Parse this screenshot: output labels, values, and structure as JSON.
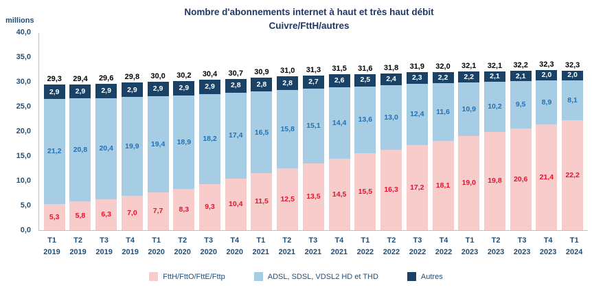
{
  "chart_data": {
    "type": "bar",
    "variant": "stacked",
    "title": "Nombre d'abonnements internet à haut et très haut débit",
    "subtitle": "Cuivre/FttH/autres",
    "unit_label": "millions",
    "ylim": [
      0,
      40
    ],
    "grid": false,
    "legend_position": "bottom",
    "yticks": [
      {
        "v": 40,
        "label": "40,0"
      },
      {
        "v": 35,
        "label": "35,0"
      },
      {
        "v": 30,
        "label": "30,0"
      },
      {
        "v": 25,
        "label": "25,0"
      },
      {
        "v": 20,
        "label": "20,0"
      },
      {
        "v": 15,
        "label": "15,0"
      },
      {
        "v": 10,
        "label": "10,0"
      },
      {
        "v": 5,
        "label": "5,0"
      },
      {
        "v": 0,
        "label": "0,0"
      }
    ],
    "categories": [
      {
        "t": "T1",
        "year": "2019"
      },
      {
        "t": "T2",
        "year": "2019"
      },
      {
        "t": "T3",
        "year": "2019"
      },
      {
        "t": "T4",
        "year": "2019"
      },
      {
        "t": "T1",
        "year": "2020"
      },
      {
        "t": "T2",
        "year": "2020"
      },
      {
        "t": "T3",
        "year": "2020"
      },
      {
        "t": "T4",
        "year": "2020"
      },
      {
        "t": "T1",
        "year": "2021"
      },
      {
        "t": "T2",
        "year": "2021"
      },
      {
        "t": "T3",
        "year": "2021"
      },
      {
        "t": "T4",
        "year": "2021"
      },
      {
        "t": "T1",
        "year": "2022"
      },
      {
        "t": "T2",
        "year": "2022"
      },
      {
        "t": "T3",
        "year": "2022"
      },
      {
        "t": "T4",
        "year": "2022"
      },
      {
        "t": "T1",
        "year": "2023"
      },
      {
        "t": "T2",
        "year": "2023"
      },
      {
        "t": "T3",
        "year": "2023"
      },
      {
        "t": "T4",
        "year": "2023"
      },
      {
        "t": "T1",
        "year": "2024"
      }
    ],
    "totals": [
      "29,3",
      "29,4",
      "29,6",
      "29,8",
      "30,0",
      "30,2",
      "30,4",
      "30,7",
      "30,9",
      "31,0",
      "31,3",
      "31,5",
      "31,6",
      "31,8",
      "31,9",
      "32,0",
      "32,1",
      "32,1",
      "32,2",
      "32,3",
      "32,3"
    ],
    "series": [
      {
        "key": "ftth",
        "name": "FttH/FttO/FttE/Fttp",
        "color": "#F7CCCB",
        "label_color": "#E8112D",
        "values": [
          5.3,
          5.8,
          6.3,
          7.0,
          7.7,
          8.3,
          9.3,
          10.4,
          11.5,
          12.5,
          13.5,
          14.5,
          15.5,
          16.3,
          17.2,
          18.1,
          19.0,
          19.8,
          20.6,
          21.4,
          22.2
        ],
        "labels": [
          "5,3",
          "5,8",
          "6,3",
          "7,0",
          "7,7",
          "8,3",
          "9,3",
          "10,4",
          "11,5",
          "12,5",
          "13,5",
          "14,5",
          "15,5",
          "16,3",
          "17,2",
          "18,1",
          "19,0",
          "19,8",
          "20,6",
          "21,4",
          "22,2"
        ]
      },
      {
        "key": "adsl",
        "name": "ADSL, SDSL, VDSL2 HD et THD",
        "color": "#A6CDE3",
        "label_color": "#2272B4",
        "values": [
          21.2,
          20.8,
          20.4,
          19.9,
          19.4,
          18.9,
          18.2,
          17.4,
          16.5,
          15.8,
          15.1,
          14.4,
          13.6,
          13.0,
          12.4,
          11.6,
          10.9,
          10.2,
          9.5,
          8.9,
          8.1
        ],
        "labels": [
          "21,2",
          "20,8",
          "20,4",
          "19,9",
          "19,4",
          "18,9",
          "18,2",
          "17,4",
          "16,5",
          "15,8",
          "15,1",
          "14,4",
          "13,6",
          "13,0",
          "12,4",
          "11,6",
          "10,9",
          "10,2",
          "9,5",
          "8,9",
          "8,1"
        ]
      },
      {
        "key": "autres",
        "name": "Autres",
        "color": "#1A4266",
        "label_color": "#FFFFFF",
        "values": [
          2.9,
          2.9,
          2.9,
          2.9,
          2.9,
          2.9,
          2.9,
          2.8,
          2.8,
          2.8,
          2.7,
          2.6,
          2.5,
          2.4,
          2.3,
          2.2,
          2.2,
          2.1,
          2.1,
          2.0,
          2.0
        ],
        "labels": [
          "2,9",
          "2,9",
          "2,9",
          "2,9",
          "2,9",
          "2,9",
          "2,9",
          "2,8",
          "2,8",
          "2,8",
          "2,7",
          "2,6",
          "2,5",
          "2,4",
          "2,3",
          "2,2",
          "2,2",
          "2,1",
          "2,1",
          "2,0",
          "2,0"
        ]
      }
    ]
  }
}
